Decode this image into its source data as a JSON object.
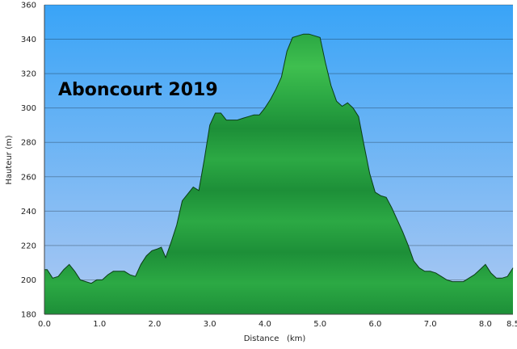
{
  "chart_data": {
    "type": "area",
    "title": "Aboncourt 2019",
    "xlabel": "Distance   (km)",
    "ylabel": "Hauteur (m)",
    "xlim": [
      0,
      8.5
    ],
    "ylim": [
      180,
      360
    ],
    "x_ticks": [
      "0.0",
      "1.0",
      "2.0",
      "3.0",
      "4.0",
      "5.0",
      "6.0",
      "7.0",
      "8.0",
      "8.5"
    ],
    "x_tick_values": [
      0,
      1,
      2,
      3,
      4,
      5,
      6,
      7,
      8,
      8.5
    ],
    "y_ticks": [
      "180",
      "200",
      "220",
      "240",
      "260",
      "280",
      "300",
      "320",
      "340",
      "360"
    ],
    "y_tick_values": [
      180,
      200,
      220,
      240,
      260,
      280,
      300,
      320,
      340,
      360
    ],
    "grid": true,
    "colors": {
      "sky_top": "#39a4f7",
      "sky_bottom": "#aec9f2",
      "fill_dark": "#0f7a2e",
      "fill_light": "#3fbf4f",
      "outline": "#0b3d16"
    },
    "series": [
      {
        "x": [
          0.0,
          0.05,
          0.15,
          0.25,
          0.35,
          0.45,
          0.55,
          0.65,
          0.75,
          0.85,
          0.95,
          1.05,
          1.15,
          1.25,
          1.35,
          1.45,
          1.55,
          1.65,
          1.75,
          1.85,
          1.95,
          2.05,
          2.12,
          2.2,
          2.3,
          2.4,
          2.5,
          2.6,
          2.7,
          2.8,
          2.9,
          3.0,
          3.1,
          3.2,
          3.3,
          3.4,
          3.5,
          3.6,
          3.7,
          3.8,
          3.9,
          4.0,
          4.1,
          4.2,
          4.3,
          4.4,
          4.5,
          4.6,
          4.7,
          4.8,
          4.9,
          5.0,
          5.1,
          5.2,
          5.3,
          5.4,
          5.5,
          5.6,
          5.7,
          5.8,
          5.9,
          6.0,
          6.1,
          6.2,
          6.3,
          6.4,
          6.5,
          6.6,
          6.7,
          6.8,
          6.9,
          7.0,
          7.1,
          7.2,
          7.3,
          7.4,
          7.5,
          7.6,
          7.7,
          7.8,
          7.9,
          8.0,
          8.1,
          8.2,
          8.3,
          8.4,
          8.5
        ],
        "values": [
          206,
          206,
          201,
          202,
          206,
          209,
          205,
          200,
          199,
          198,
          200,
          200,
          203,
          205,
          205,
          205,
          203,
          202,
          209,
          214,
          217,
          218,
          219,
          213,
          222,
          232,
          246,
          250,
          254,
          252,
          270,
          290,
          297,
          297,
          293,
          293,
          293,
          294,
          295,
          296,
          296,
          300,
          305,
          311,
          318,
          333,
          341,
          342,
          343,
          343,
          342,
          341,
          326,
          313,
          304,
          301,
          303,
          300,
          295,
          278,
          262,
          251,
          249,
          248,
          242,
          235,
          228,
          220,
          211,
          207,
          205,
          205,
          204,
          202,
          200,
          199,
          199,
          199,
          201,
          203,
          206,
          209,
          204,
          201,
          201,
          202,
          207
        ]
      }
    ]
  }
}
